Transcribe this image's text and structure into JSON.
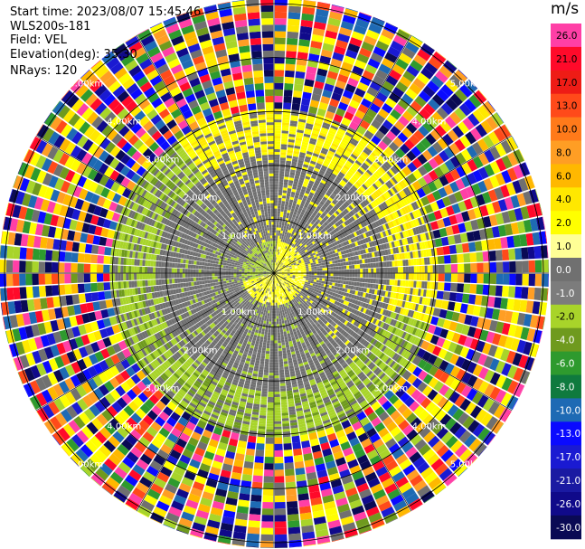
{
  "header": {
    "start_time": "Start time: 2023/08/07 15:45:46",
    "device": "WLS200s-181",
    "field": "Field: VEL",
    "elevation": "Elevation(deg): 35.30",
    "nrays": "NRays: 120"
  },
  "chart_data": {
    "type": "heatmap",
    "projection": "polar-ppi",
    "title": "",
    "field": "VEL",
    "elevation_deg": 35.3,
    "n_rays": 120,
    "range_rings_km": [
      1.0,
      2.0,
      3.0,
      4.0,
      5.0
    ],
    "ring_labels": {
      "1.0": "1.00km",
      "2.0": "2.00km",
      "3.0": "3.00km",
      "4.0": "4.00km",
      "5.0": "5.00km"
    },
    "max_range_km": 5.1,
    "azimuth_lines_deg": [
      0,
      30,
      60,
      90,
      120,
      150,
      180,
      210,
      240,
      270,
      300,
      330
    ],
    "regions": [
      {
        "range_km": [
          0.0,
          0.6
        ],
        "description": "near-zero velocity, light green / yellow split",
        "values_ms": [
          -2.0,
          2.0
        ]
      },
      {
        "range_km": [
          0.6,
          2.2
        ],
        "description": "mostly near-zero (grey) with green and yellow bands",
        "values_ms": [
          -2.0,
          0.0,
          2.0
        ]
      },
      {
        "range_km": [
          2.2,
          3.0
        ],
        "description": "yellow band to north-east, green band to south-west",
        "values_ms": [
          -4.0,
          -2.0,
          2.0,
          4.0
        ]
      },
      {
        "range_km": [
          3.0,
          5.1
        ],
        "description": "noise: random velocities over full scale",
        "values_ms": [
          -30.0,
          26.0
        ]
      }
    ],
    "colorbar": {
      "unit": "m/s",
      "ticks": [
        "26.0",
        "21.0",
        "17.0",
        "13.0",
        "10.0",
        "8.0",
        "6.0",
        "4.0",
        "2.0",
        "1.0",
        "0.0",
        "-1.0",
        "-2.0",
        "-4.0",
        "-6.0",
        "-8.0",
        "-10.0",
        "-13.0",
        "-17.0",
        "-21.0",
        "-26.0",
        "-30.0"
      ],
      "colors": [
        "#ff3fa6",
        "#ff0a2a",
        "#ee1c16",
        "#ff4a1a",
        "#ff7a1a",
        "#ff9e24",
        "#ffb800",
        "#ffe800",
        "#ffff00",
        "#ffff96",
        "#707070",
        "#7c7c7c",
        "#a8d42a",
        "#6f9a1e",
        "#2e9a2e",
        "#0f7a3e",
        "#1e6ab4",
        "#0a0aff",
        "#1a1ad2",
        "#1a1aa2",
        "#100a8a",
        "#0a0a54"
      ]
    }
  }
}
